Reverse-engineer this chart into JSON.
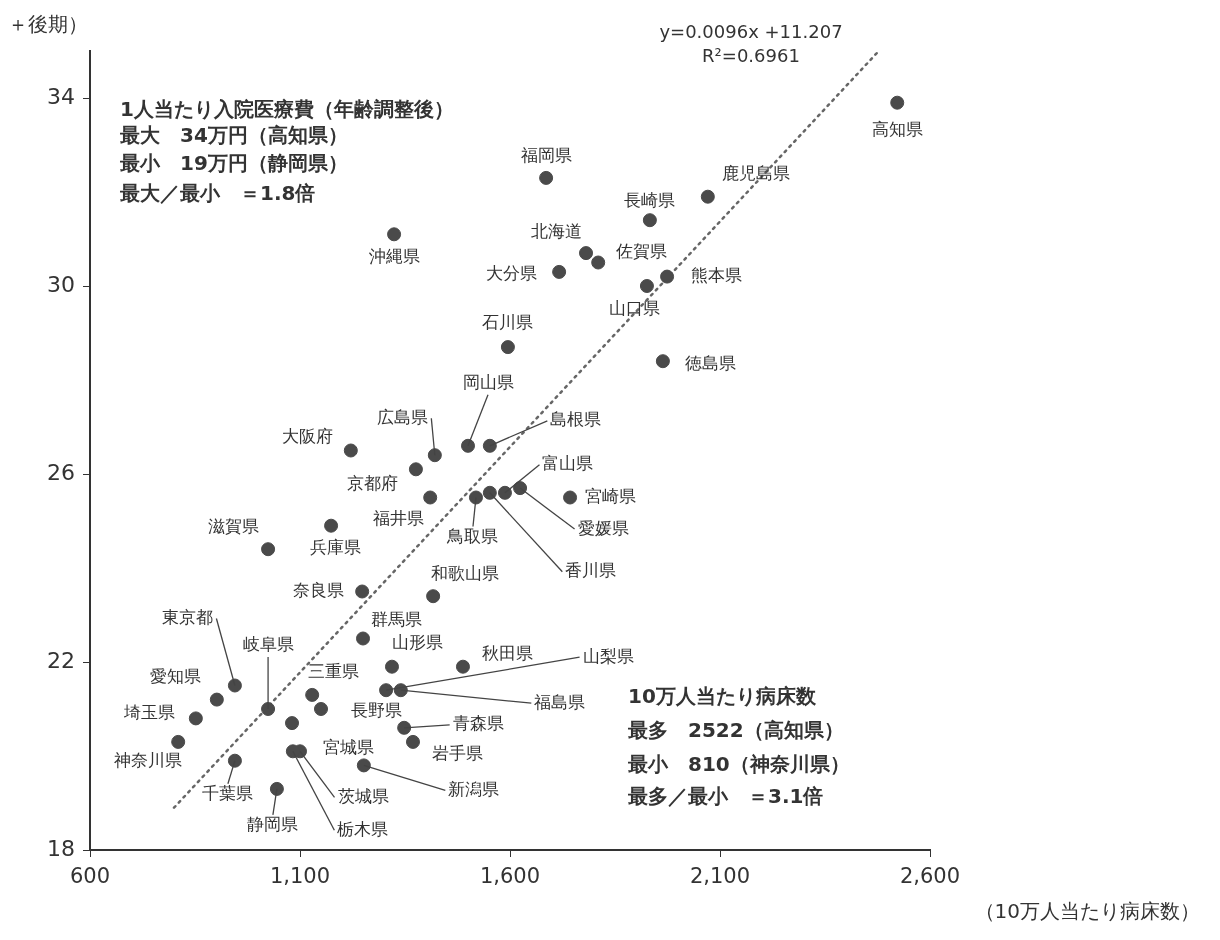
{
  "chart_data": {
    "type": "scatter",
    "ylabel": "＋後期）",
    "xlabel": "（10万人当たり病床数）",
    "xlim": [
      600,
      2600
    ],
    "xticks": [
      600,
      {
        "value": 1100,
        "label": "1,100"
      },
      {
        "value": 1600,
        "label": "1,600"
      },
      {
        "value": 2100,
        "label": "2,100"
      },
      {
        "value": 2600,
        "label": "2,600"
      }
    ],
    "ylim": [
      18,
      35
    ],
    "yticks": [
      18,
      22,
      26,
      30,
      34
    ],
    "grid": false,
    "legend": false,
    "marker": "circle",
    "series": [
      {
        "color": "#4a4a4a",
        "x": [
          2522,
          2071,
          1933,
          1686,
          1781,
          1810,
          1717,
          1926,
          1974,
          1595,
          1964,
          1324,
          1500,
          1552,
          1421,
          1221,
          1376,
          1410,
          1519,
          1588,
          1624,
          1552,
          1743,
          1174,
          1024,
          1248,
          1417,
          1250,
          1319,
          1488,
          1305,
          1340,
          1129,
          1150,
          1024,
          945,
          902,
          852,
          810,
          945,
          1045,
          1081,
          1100,
          1083,
          1252,
          1348,
          1369
        ],
        "values": [
          33.9,
          31.9,
          31.4,
          32.3,
          30.7,
          30.5,
          30.3,
          30.0,
          30.2,
          28.7,
          28.4,
          31.1,
          26.6,
          26.6,
          26.4,
          26.5,
          26.1,
          25.5,
          25.5,
          25.6,
          25.7,
          25.6,
          25.5,
          24.9,
          24.4,
          23.5,
          23.4,
          22.5,
          21.9,
          21.9,
          21.4,
          21.4,
          21.3,
          21.0,
          21.0,
          21.5,
          21.2,
          20.8,
          20.3,
          19.9,
          19.3,
          20.7,
          20.1,
          20.1,
          19.8,
          20.6,
          20.3
        ]
      },
      {
        "type": "line",
        "color": "#666666",
        "x": [
          800,
          2478
        ],
        "values": [
          18.9,
          35.0
        ],
        "line_style": "dotted",
        "marker": "none"
      }
    ],
    "annotations": [
      "y=0.0096x +11.207",
      "R²=0.6961",
      "1人当たり入院医療費（年齢調整後）",
      "最大　34万円（高知県）",
      "最小　19万円（静岡県）",
      "最大／最小　＝1.8倍",
      "10万人当たり病床数",
      "最多　2522（高知県）",
      "最小　810（神奈川県）",
      "最多／最小　＝3.1倍",
      {
        "text": "高知県",
        "x": 2522,
        "y": 33.9
      },
      {
        "text": "鹿児島県",
        "x": 2071,
        "y": 31.9
      },
      {
        "text": "長崎県",
        "x": 1933,
        "y": 31.4
      },
      {
        "text": "福岡県",
        "x": 1686,
        "y": 32.3
      },
      {
        "text": "北海道",
        "x": 1781,
        "y": 30.7
      },
      {
        "text": "佐賀県",
        "x": 1810,
        "y": 30.5
      },
      {
        "text": "大分県",
        "x": 1717,
        "y": 30.3
      },
      {
        "text": "山口県",
        "x": 1926,
        "y": 30.0
      },
      {
        "text": "熊本県",
        "x": 1974,
        "y": 30.2
      },
      {
        "text": "石川県",
        "x": 1595,
        "y": 28.7
      },
      {
        "text": "徳島県",
        "x": 1964,
        "y": 28.4
      },
      {
        "text": "沖縄県",
        "x": 1324,
        "y": 31.1
      },
      {
        "text": "岡山県",
        "x": 1500,
        "y": 26.6
      },
      {
        "text": "島根県",
        "x": 1552,
        "y": 26.6
      },
      {
        "text": "広島県",
        "x": 1421,
        "y": 26.4
      },
      {
        "text": "大阪府",
        "x": 1221,
        "y": 26.5
      },
      {
        "text": "京都府",
        "x": 1376,
        "y": 26.1
      },
      {
        "text": "福井県",
        "x": 1410,
        "y": 25.5
      },
      {
        "text": "鳥取県",
        "x": 1519,
        "y": 25.5
      },
      {
        "text": "富山県",
        "x": 1588,
        "y": 25.6
      },
      {
        "text": "愛媛県",
        "x": 1624,
        "y": 25.7
      },
      {
        "text": "香川県",
        "x": 1552,
        "y": 25.6
      },
      {
        "text": "宮崎県",
        "x": 1743,
        "y": 25.5
      },
      {
        "text": "兵庫県",
        "x": 1174,
        "y": 24.9
      },
      {
        "text": "滋賀県",
        "x": 1024,
        "y": 24.4
      },
      {
        "text": "奈良県",
        "x": 1248,
        "y": 23.5
      },
      {
        "text": "和歌山県",
        "x": 1417,
        "y": 23.4
      },
      {
        "text": "群馬県",
        "x": 1250,
        "y": 22.5
      },
      {
        "text": "山形県",
        "x": 1319,
        "y": 21.9
      },
      {
        "text": "秋田県",
        "x": 1488,
        "y": 21.9
      },
      {
        "text": "山梨県",
        "x": 1305,
        "y": 21.4
      },
      {
        "text": "福島県",
        "x": 1340,
        "y": 21.4
      },
      {
        "text": "三重県",
        "x": 1129,
        "y": 21.3
      },
      {
        "text": "長野県",
        "x": 1150,
        "y": 21.0
      },
      {
        "text": "岐阜県",
        "x": 1024,
        "y": 21.0
      },
      {
        "text": "東京都",
        "x": 945,
        "y": 21.5
      },
      {
        "text": "愛知県",
        "x": 902,
        "y": 21.2
      },
      {
        "text": "埼玉県",
        "x": 852,
        "y": 20.8
      },
      {
        "text": "神奈川県",
        "x": 810,
        "y": 20.3
      },
      {
        "text": "千葉県",
        "x": 945,
        "y": 19.9
      },
      {
        "text": "静岡県",
        "x": 1045,
        "y": 19.3
      },
      {
        "text": "宮城県",
        "x": 1081,
        "y": 20.7
      },
      {
        "text": "茨城県",
        "x": 1100,
        "y": 20.1
      },
      {
        "text": "栃木県",
        "x": 1083,
        "y": 20.1
      },
      {
        "text": "新潟県",
        "x": 1252,
        "y": 19.8
      },
      {
        "text": "青森県",
        "x": 1348,
        "y": 20.6
      },
      {
        "text": "岩手県",
        "x": 1369,
        "y": 20.3
      }
    ]
  }
}
